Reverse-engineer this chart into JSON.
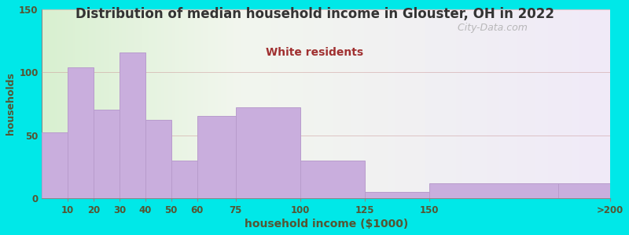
{
  "title": "Distribution of median household income in Glouster, OH in 2022",
  "subtitle": "White residents",
  "xlabel": "household income ($1000)",
  "ylabel": "households",
  "bar_edges": [
    0,
    10,
    20,
    30,
    40,
    50,
    60,
    75,
    100,
    125,
    150,
    200,
    220
  ],
  "bar_values": [
    52,
    104,
    70,
    116,
    62,
    30,
    65,
    72,
    30,
    5,
    12,
    12
  ],
  "bar_color": "#c9aedd",
  "bar_edge_color": "#b89ccc",
  "ylim": [
    0,
    150
  ],
  "yticks": [
    0,
    50,
    100,
    150
  ],
  "xtick_positions": [
    10,
    20,
    30,
    40,
    50,
    60,
    75,
    100,
    125,
    150,
    220
  ],
  "xtick_labels": [
    "10",
    "20",
    "30",
    "40",
    "50",
    "60",
    "75",
    "100",
    "125",
    "150",
    ">200"
  ],
  "background_color": "#00e8e8",
  "title_color": "#333333",
  "subtitle_color": "#a03030",
  "axis_label_color": "#555533",
  "tick_label_color": "#555533",
  "grid_color": "#cc9999",
  "watermark": "  City-Data.com"
}
